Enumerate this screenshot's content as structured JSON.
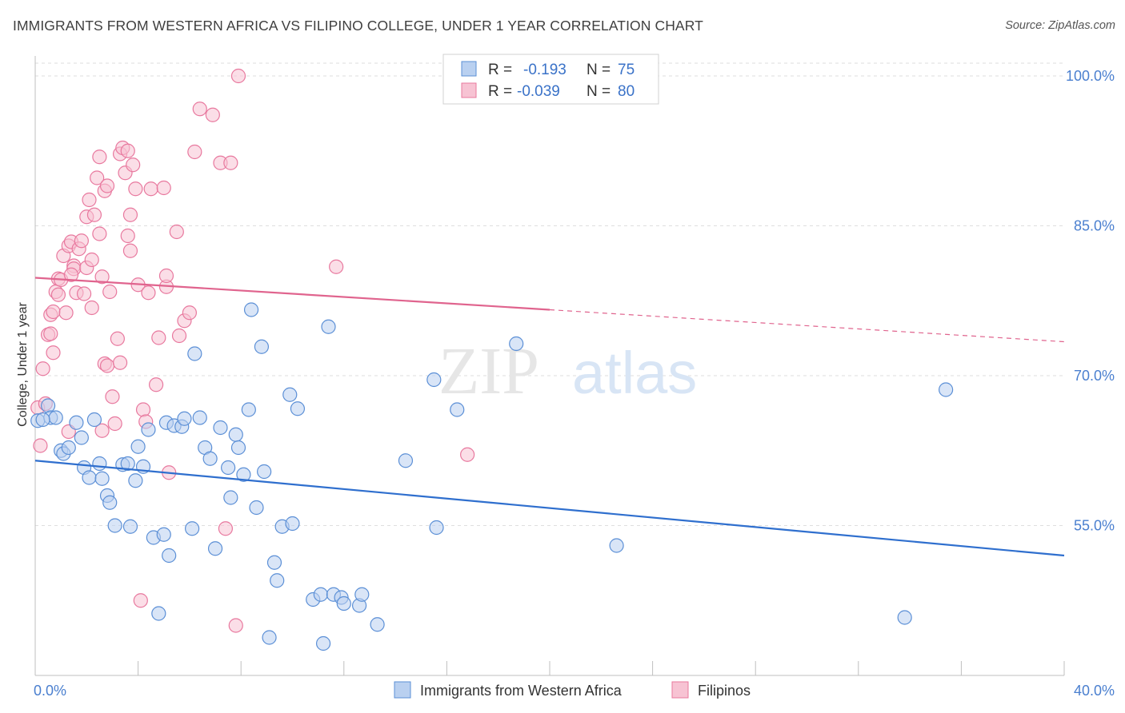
{
  "title": "IMMIGRANTS FROM WESTERN AFRICA VS FILIPINO COLLEGE, UNDER 1 YEAR CORRELATION CHART",
  "source": "Source: ZipAtlas.com",
  "watermark": {
    "zip": "ZIP",
    "atlas": "atlas"
  },
  "colors": {
    "blue": "#5b8fd6",
    "blue_fill": "#b9d0f0",
    "pink": "#e8789e",
    "pink_fill": "#f7c3d3",
    "axis_text": "#4a7fcf"
  },
  "stats": {
    "r_label": "R =",
    "n_label": "N =",
    "series": [
      {
        "r": "-0.193",
        "n": "75"
      },
      {
        "r": "-0.039",
        "n": "80"
      }
    ]
  },
  "chart_data": {
    "type": "scatter",
    "xlabel": "",
    "ylabel": "College, Under 1 year",
    "xlim": [
      0,
      40
    ],
    "ylim": [
      40,
      102
    ],
    "x_tick_labels": [
      "0.0%",
      "40.0%"
    ],
    "y_ticks": [
      55,
      70,
      85,
      100
    ],
    "y_tick_labels": [
      "55.0%",
      "70.0%",
      "85.0%",
      "100.0%"
    ],
    "grid": true,
    "legend_position": "bottom-center",
    "series": [
      {
        "name": "Immigrants from Western Africa",
        "color": "#5b8fd6",
        "trend": {
          "x": [
            0,
            40
          ],
          "y": [
            61.5,
            52.0
          ]
        },
        "points": [
          [
            0.1,
            65.5
          ],
          [
            0.5,
            67
          ],
          [
            0.6,
            65.8
          ],
          [
            0.8,
            65.8
          ],
          [
            1.0,
            62.5
          ],
          [
            1.1,
            62.2
          ],
          [
            1.3,
            62.8
          ],
          [
            1.6,
            65.3
          ],
          [
            1.8,
            63.8
          ],
          [
            1.9,
            60.8
          ],
          [
            2.1,
            59.8
          ],
          [
            2.3,
            65.6
          ],
          [
            2.5,
            61.2
          ],
          [
            2.6,
            59.7
          ],
          [
            2.8,
            58.0
          ],
          [
            2.9,
            57.3
          ],
          [
            3.1,
            55.0
          ],
          [
            3.4,
            61.1
          ],
          [
            3.6,
            61.2
          ],
          [
            3.7,
            54.9
          ],
          [
            3.9,
            59.5
          ],
          [
            4.0,
            62.9
          ],
          [
            4.2,
            60.9
          ],
          [
            4.4,
            64.6
          ],
          [
            4.6,
            53.8
          ],
          [
            4.8,
            46.2
          ],
          [
            5.0,
            54.1
          ],
          [
            5.1,
            65.3
          ],
          [
            5.2,
            52.0
          ],
          [
            5.4,
            65.0
          ],
          [
            5.7,
            64.9
          ],
          [
            5.8,
            65.7
          ],
          [
            6.1,
            54.7
          ],
          [
            6.2,
            72.2
          ],
          [
            6.4,
            65.8
          ],
          [
            6.6,
            62.8
          ],
          [
            6.8,
            61.7
          ],
          [
            7.0,
            52.7
          ],
          [
            7.2,
            64.8
          ],
          [
            7.5,
            60.8
          ],
          [
            7.6,
            57.8
          ],
          [
            7.8,
            64.1
          ],
          [
            7.9,
            62.8
          ],
          [
            8.1,
            60.1
          ],
          [
            8.3,
            66.6
          ],
          [
            8.4,
            76.6
          ],
          [
            8.6,
            56.8
          ],
          [
            8.8,
            72.9
          ],
          [
            8.9,
            60.4
          ],
          [
            9.1,
            43.8
          ],
          [
            9.3,
            51.3
          ],
          [
            9.4,
            49.5
          ],
          [
            9.6,
            54.9
          ],
          [
            9.9,
            68.1
          ],
          [
            10.0,
            55.2
          ],
          [
            10.2,
            66.7
          ],
          [
            10.8,
            47.6
          ],
          [
            11.1,
            48.1
          ],
          [
            11.2,
            43.2
          ],
          [
            11.4,
            74.9
          ],
          [
            11.6,
            48.1
          ],
          [
            11.9,
            47.8
          ],
          [
            12.0,
            47.2
          ],
          [
            12.6,
            47.0
          ],
          [
            12.7,
            48.1
          ],
          [
            13.3,
            45.1
          ],
          [
            14.4,
            61.5
          ],
          [
            15.5,
            69.6
          ],
          [
            15.6,
            54.8
          ],
          [
            16.4,
            66.6
          ],
          [
            18.7,
            73.2
          ],
          [
            22.6,
            53.0
          ],
          [
            33.8,
            45.8
          ],
          [
            35.4,
            68.6
          ],
          [
            0.3,
            65.6
          ]
        ]
      },
      {
        "name": "Filipinos",
        "color": "#e8789e",
        "trend": {
          "x": [
            0,
            20
          ],
          "y": [
            79.8,
            76.6
          ]
        },
        "trend_dashed": {
          "x": [
            20,
            40
          ],
          "y": [
            76.6,
            73.4
          ]
        },
        "points": [
          [
            0.1,
            66.8
          ],
          [
            0.2,
            63.0
          ],
          [
            0.3,
            70.7
          ],
          [
            0.5,
            74.1
          ],
          [
            0.6,
            74.2
          ],
          [
            0.6,
            76.1
          ],
          [
            0.7,
            76.4
          ],
          [
            0.8,
            78.4
          ],
          [
            0.9,
            79.7
          ],
          [
            0.9,
            78.1
          ],
          [
            1.0,
            79.6
          ],
          [
            1.1,
            82.0
          ],
          [
            1.2,
            76.3
          ],
          [
            1.3,
            83.0
          ],
          [
            1.4,
            83.4
          ],
          [
            1.5,
            81.0
          ],
          [
            1.5,
            80.7
          ],
          [
            1.6,
            78.3
          ],
          [
            1.7,
            82.7
          ],
          [
            1.8,
            83.5
          ],
          [
            1.9,
            78.2
          ],
          [
            2.0,
            80.8
          ],
          [
            2.0,
            85.9
          ],
          [
            2.1,
            87.6
          ],
          [
            2.2,
            81.6
          ],
          [
            2.3,
            86.1
          ],
          [
            2.4,
            89.8
          ],
          [
            2.5,
            91.9
          ],
          [
            2.5,
            84.2
          ],
          [
            2.6,
            79.9
          ],
          [
            2.7,
            88.5
          ],
          [
            2.7,
            71.2
          ],
          [
            2.8,
            89.0
          ],
          [
            2.8,
            71.0
          ],
          [
            2.9,
            78.4
          ],
          [
            3.0,
            67.9
          ],
          [
            3.1,
            65.2
          ],
          [
            3.2,
            73.7
          ],
          [
            3.3,
            92.2
          ],
          [
            3.4,
            92.8
          ],
          [
            3.5,
            90.3
          ],
          [
            3.6,
            92.5
          ],
          [
            3.7,
            86.1
          ],
          [
            3.7,
            82.5
          ],
          [
            3.8,
            91.1
          ],
          [
            3.9,
            88.7
          ],
          [
            4.0,
            79.1
          ],
          [
            4.1,
            47.5
          ],
          [
            4.2,
            66.6
          ],
          [
            4.3,
            65.4
          ],
          [
            4.4,
            78.3
          ],
          [
            4.5,
            88.7
          ],
          [
            4.7,
            69.1
          ],
          [
            4.8,
            73.8
          ],
          [
            5.0,
            88.8
          ],
          [
            5.1,
            78.9
          ],
          [
            5.1,
            80.0
          ],
          [
            5.2,
            60.3
          ],
          [
            5.5,
            84.4
          ],
          [
            5.6,
            74.0
          ],
          [
            5.8,
            75.5
          ],
          [
            6.0,
            76.3
          ],
          [
            6.2,
            92.4
          ],
          [
            6.4,
            96.7
          ],
          [
            6.9,
            96.1
          ],
          [
            7.2,
            91.3
          ],
          [
            7.4,
            54.7
          ],
          [
            7.6,
            91.3
          ],
          [
            7.8,
            45.0
          ],
          [
            7.9,
            100.0
          ],
          [
            11.7,
            80.9
          ],
          [
            16.8,
            62.1
          ],
          [
            1.3,
            64.4
          ],
          [
            2.6,
            64.5
          ],
          [
            0.4,
            67.2
          ],
          [
            2.2,
            76.8
          ],
          [
            3.3,
            71.3
          ],
          [
            1.4,
            80.1
          ],
          [
            0.7,
            72.3
          ],
          [
            3.6,
            84.0
          ]
        ]
      }
    ]
  }
}
